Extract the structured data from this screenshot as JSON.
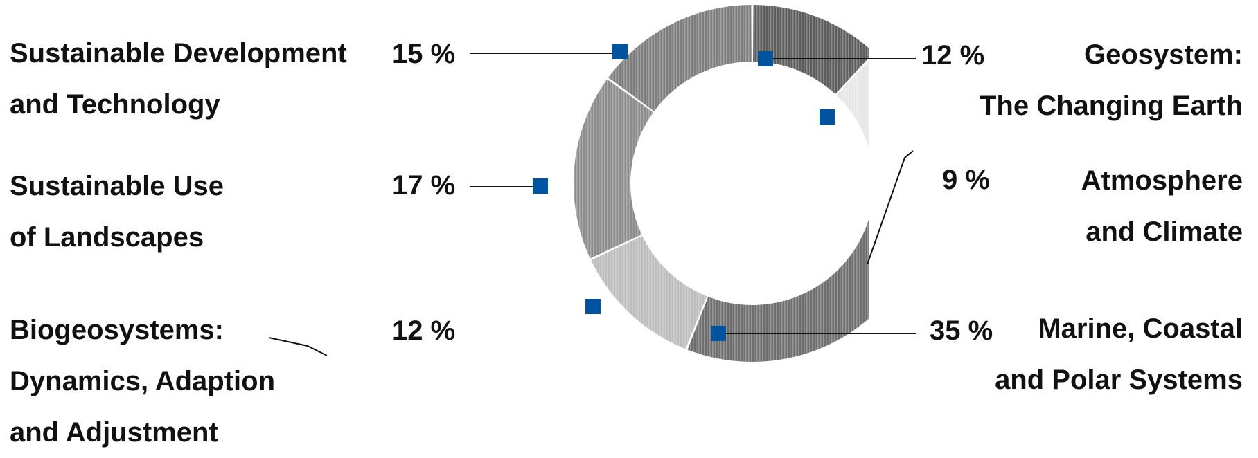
{
  "chart_data": {
    "type": "pie",
    "donut": true,
    "slices": [
      {
        "label_lines": [
          "Geosystem:",
          "The Changing Earth"
        ],
        "value": 12,
        "value_label": "12 %"
      },
      {
        "label_lines": [
          "Atmosphere",
          "and Climate"
        ],
        "value": 9,
        "value_label": "9 %"
      },
      {
        "label_lines": [
          "Marine, Coastal",
          "and Polar Systems"
        ],
        "value": 35,
        "value_label": "35 %"
      },
      {
        "label_lines": [
          "Biogeosystems:",
          "Dynamics, Adaption",
          "and Adjustment"
        ],
        "value": 12,
        "value_label": "12 %"
      },
      {
        "label_lines": [
          "Sustainable Use",
          "of Landscapes"
        ],
        "value": 17,
        "value_label": "17 %"
      },
      {
        "label_lines": [
          "Sustainable Development",
          "and Technology"
        ],
        "value": 15,
        "value_label": "15 %"
      }
    ],
    "colors": {
      "marker": "#00549f",
      "leader_line": "#111111",
      "slice_fills": [
        "#5c5c5c",
        "#e6e6e6",
        "#6e6e6e",
        "#bdbdbd",
        "#8c8c8c",
        "#7d7d7d"
      ]
    }
  }
}
